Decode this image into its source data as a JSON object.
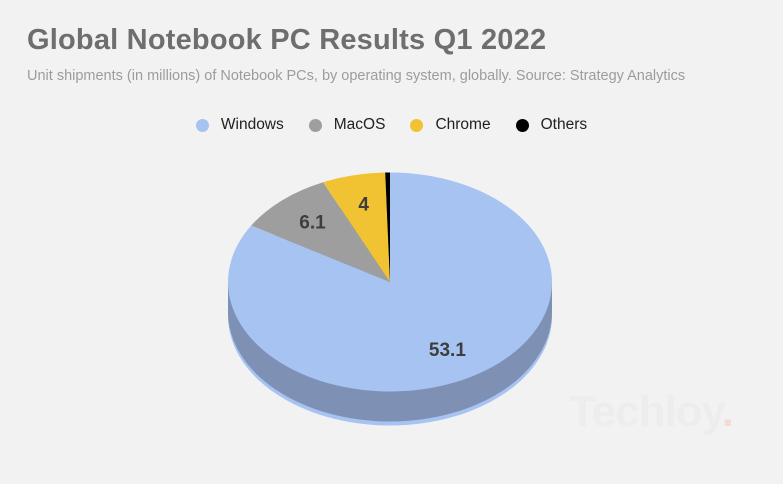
{
  "header": {
    "title": "Global Notebook PC Results Q1 2022",
    "subtitle": "Unit shipments (in millions) of Notebook PCs, by operating system, globally. Source: Strategy Analytics"
  },
  "legend": [
    {
      "label": "Windows",
      "color": "#a6c3f2"
    },
    {
      "label": "MacOS",
      "color": "#9e9e9e"
    },
    {
      "label": "Chrome",
      "color": "#f1c232"
    },
    {
      "label": "Others",
      "color": "#000000"
    }
  ],
  "chart_data": {
    "type": "pie",
    "title": "Global Notebook PC Results Q1 2022",
    "subtitle": "Unit shipments (in millions) of Notebook PCs, by operating system, globally. Source: Strategy Analytics",
    "unit": "millions of units",
    "style": "3d",
    "start_angle_deg": 0,
    "direction": "clockwise",
    "legend_position": "top-center",
    "depth_color": "#7e90b4",
    "label_color": "#3e3e3e",
    "background_color": "#f2f2f2",
    "series": [
      {
        "name": "Windows",
        "value": 53.1,
        "label": "53.1",
        "color": "#a6c3f2"
      },
      {
        "name": "MacOS",
        "value": 6.1,
        "label": "6.1",
        "color": "#9e9e9e"
      },
      {
        "name": "Chrome",
        "value": 4,
        "label": "4",
        "color": "#f1c232"
      },
      {
        "name": "Others",
        "value": 0.3,
        "label": "",
        "color": "#000000"
      }
    ]
  },
  "watermark": {
    "text": "Techloy",
    "dot": "."
  }
}
